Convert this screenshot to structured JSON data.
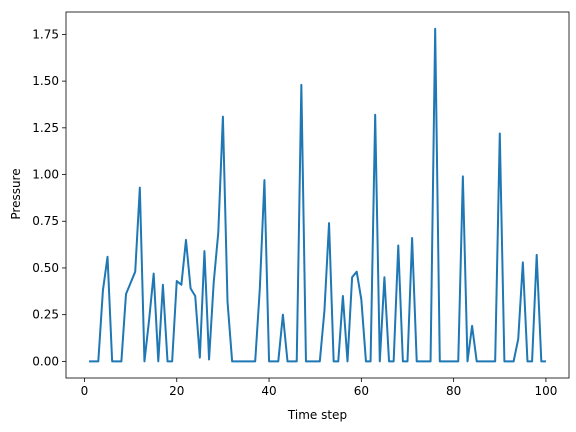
{
  "chart_data": {
    "type": "line",
    "title": "",
    "xlabel": "Time step",
    "ylabel": "Pressure",
    "xlim": [
      -4,
      105
    ],
    "ylim": [
      -0.089,
      1.87
    ],
    "xticks": [
      0,
      20,
      40,
      60,
      80,
      100
    ],
    "xtick_labels": [
      "0",
      "20",
      "40",
      "60",
      "80",
      "100"
    ],
    "yticks": [
      0.0,
      0.25,
      0.5,
      0.75,
      1.0,
      1.25,
      1.5,
      1.75
    ],
    "ytick_labels": [
      "0.00",
      "0.25",
      "0.50",
      "0.75",
      "1.00",
      "1.25",
      "1.50",
      "1.75"
    ],
    "grid": false,
    "series": [
      {
        "color": "#1f77b4",
        "x": [
          1,
          2,
          3,
          4,
          5,
          6,
          7,
          8,
          9,
          10,
          11,
          12,
          13,
          14,
          15,
          16,
          17,
          18,
          19,
          20,
          21,
          22,
          23,
          24,
          25,
          26,
          27,
          28,
          29,
          30,
          31,
          32,
          33,
          34,
          35,
          36,
          37,
          38,
          39,
          40,
          41,
          42,
          43,
          44,
          45,
          46,
          47,
          48,
          49,
          50,
          51,
          52,
          53,
          54,
          55,
          56,
          57,
          58,
          59,
          60,
          61,
          62,
          63,
          64,
          65,
          66,
          67,
          68,
          69,
          70,
          71,
          72,
          73,
          74,
          75,
          76,
          77,
          78,
          79,
          80,
          81,
          82,
          83,
          84,
          85,
          86,
          87,
          88,
          89,
          90,
          91,
          92,
          93,
          94,
          95,
          96,
          97,
          98,
          99,
          100
        ],
        "y": [
          0,
          0,
          0,
          0.38,
          0.56,
          0,
          0,
          0,
          0.36,
          0.42,
          0.48,
          0.93,
          0,
          0.22,
          0.47,
          0,
          0.41,
          0,
          0,
          0.43,
          0.41,
          0.65,
          0.39,
          0.35,
          0.02,
          0.59,
          0.01,
          0.42,
          0.69,
          1.31,
          0.32,
          0,
          0,
          0,
          0,
          0,
          0,
          0.39,
          0.97,
          0,
          0,
          0,
          0.25,
          0,
          0,
          0,
          1.48,
          0,
          0,
          0,
          0,
          0.27,
          0.74,
          0,
          0,
          0.35,
          0,
          0.45,
          0.48,
          0.33,
          0,
          0,
          1.32,
          0,
          0.45,
          0,
          0,
          0.62,
          0,
          0,
          0.66,
          0,
          0,
          0,
          0,
          1.78,
          0,
          0,
          0,
          0,
          0,
          0.99,
          0,
          0.19,
          0,
          0,
          0,
          0,
          0,
          1.22,
          0,
          0,
          0,
          0.12,
          0.53,
          0,
          0,
          0.57,
          0,
          0
        ]
      }
    ]
  }
}
